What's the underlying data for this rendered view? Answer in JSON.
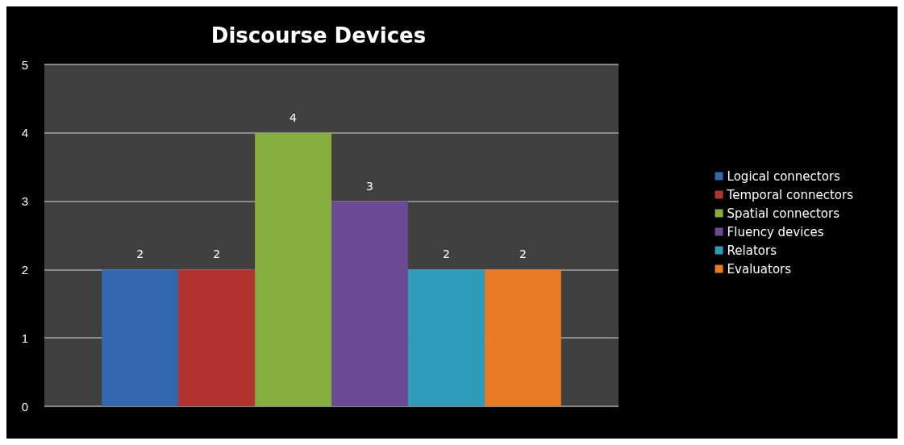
{
  "chart_data": {
    "type": "bar",
    "title": "Discourse Devices",
    "categories": [
      null
    ],
    "series": [
      {
        "name": "Logical connectors",
        "color": "#3567ae",
        "values": [
          2
        ]
      },
      {
        "name": "Temporal connectors",
        "color": "#b23431",
        "values": [
          2
        ]
      },
      {
        "name": "Spatial connectors",
        "color": "#86ad3e",
        "values": [
          4
        ]
      },
      {
        "name": "Fluency devices",
        "color": "#6a4a93",
        "values": [
          3
        ]
      },
      {
        "name": "Relators",
        "color": "#2e9cb8",
        "values": [
          2
        ]
      },
      {
        "name": "Evaluators",
        "color": "#e97b27",
        "values": [
          2
        ]
      }
    ],
    "ylim": [
      0,
      5
    ],
    "yticks": [
      0,
      1,
      2,
      3,
      4,
      5
    ],
    "grid": "y",
    "legend": "right",
    "data_labels": true
  }
}
